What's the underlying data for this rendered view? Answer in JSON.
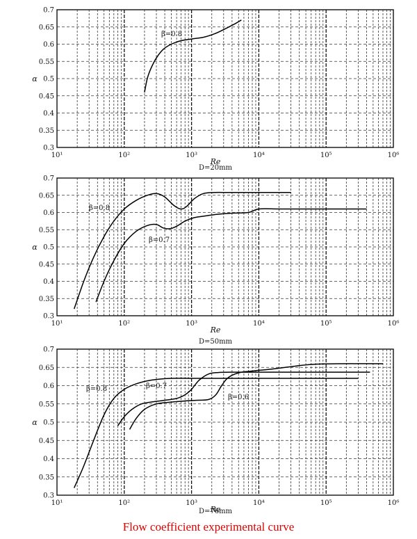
{
  "caption": "Flow coefficient experimental curve",
  "chart_data": [
    {
      "type": "line",
      "subtitle": "D=20mm",
      "xlabel": "Re",
      "ylabel": "α",
      "xscale": "log",
      "xlim": [
        10,
        1000000
      ],
      "ylim": [
        0.3,
        0.7
      ],
      "grid": true,
      "xticks": [
        "10¹",
        "10²",
        "10³",
        "10⁴",
        "10⁵",
        "10⁶"
      ],
      "yticks": [
        "0.3",
        "0.35",
        "0.4",
        "0.45",
        "0.5",
        "0.55",
        "0.6",
        "0.65",
        "0.7"
      ],
      "series": [
        {
          "name": "β=0.8",
          "x": [
            200,
            220,
            250,
            300,
            380,
            500,
            700,
            1000,
            1500,
            2200,
            3200,
            4500,
            5500
          ],
          "y": [
            0.46,
            0.5,
            0.53,
            0.56,
            0.585,
            0.6,
            0.61,
            0.615,
            0.62,
            0.63,
            0.645,
            0.66,
            0.67
          ]
        }
      ]
    },
    {
      "type": "line",
      "subtitle": "D=50mm",
      "xlabel": "Re",
      "ylabel": "α",
      "xscale": "log",
      "xlim": [
        10,
        1000000
      ],
      "ylim": [
        0.3,
        0.7
      ],
      "grid": true,
      "xticks": [
        "10¹",
        "10²",
        "10³",
        "10⁴",
        "10⁵",
        "10⁶"
      ],
      "yticks": [
        "0.3",
        "0.35",
        "0.4",
        "0.45",
        "0.5",
        "0.55",
        "0.6",
        "0.65",
        "0.7"
      ],
      "series": [
        {
          "name": "β=0.8",
          "x": [
            18,
            25,
            35,
            50,
            70,
            100,
            150,
            220,
            300,
            400,
            550,
            700,
            850,
            1100,
            1500,
            2200,
            3500,
            6000,
            10000,
            30000
          ],
          "y": [
            0.32,
            0.4,
            0.47,
            0.53,
            0.575,
            0.61,
            0.635,
            0.65,
            0.655,
            0.645,
            0.62,
            0.61,
            0.618,
            0.64,
            0.655,
            0.658,
            0.658,
            0.658,
            0.658,
            0.658
          ]
        },
        {
          "name": "β=0.7",
          "x": [
            38,
            50,
            70,
            100,
            150,
            220,
            300,
            380,
            480,
            600,
            800,
            1100,
            1600,
            2500,
            4000,
            7000,
            10000,
            20000,
            50000,
            150000,
            400000
          ],
          "y": [
            0.34,
            0.4,
            0.46,
            0.51,
            0.545,
            0.562,
            0.565,
            0.555,
            0.553,
            0.56,
            0.575,
            0.585,
            0.59,
            0.595,
            0.598,
            0.6,
            0.61,
            0.61,
            0.61,
            0.61,
            0.61
          ]
        }
      ]
    },
    {
      "type": "line",
      "subtitle": "D=76mm",
      "xlabel": "Re",
      "ylabel": "α",
      "xscale": "log",
      "xlim": [
        10,
        1000000
      ],
      "ylim": [
        0.3,
        0.7
      ],
      "grid": true,
      "xticks": [
        "10¹",
        "10²",
        "10³",
        "10⁴",
        "10⁵",
        "10⁶"
      ],
      "yticks": [
        "0.3",
        "0.35",
        "0.4",
        "0.45",
        "0.5",
        "0.55",
        "0.6",
        "0.65",
        "0.7"
      ],
      "series": [
        {
          "name": "β=0.8",
          "x": [
            18,
            25,
            35,
            50,
            70,
            100,
            150,
            250,
            500,
            1000,
            2000,
            5000,
            20000,
            300000
          ],
          "y": [
            0.32,
            0.38,
            0.45,
            0.52,
            0.565,
            0.59,
            0.605,
            0.615,
            0.62,
            0.62,
            0.62,
            0.62,
            0.62,
            0.62
          ]
        },
        {
          "name": "β=0.7",
          "x": [
            80,
            100,
            130,
            180,
            250,
            400,
            600,
            800,
            1000,
            1300,
            1800,
            2500,
            4000,
            10000,
            100000,
            450000
          ],
          "y": [
            0.49,
            0.515,
            0.535,
            0.55,
            0.555,
            0.56,
            0.565,
            0.575,
            0.59,
            0.615,
            0.632,
            0.636,
            0.637,
            0.637,
            0.637,
            0.637
          ]
        },
        {
          "name": "β=0.6",
          "x": [
            120,
            150,
            200,
            300,
            500,
            800,
            1200,
            1800,
            2300,
            2800,
            3500,
            5000,
            8000,
            15000,
            30000,
            60000,
            150000,
            700000
          ],
          "y": [
            0.48,
            0.51,
            0.535,
            0.55,
            0.555,
            0.558,
            0.56,
            0.562,
            0.575,
            0.6,
            0.622,
            0.635,
            0.64,
            0.645,
            0.652,
            0.658,
            0.66,
            0.66
          ]
        }
      ]
    }
  ]
}
